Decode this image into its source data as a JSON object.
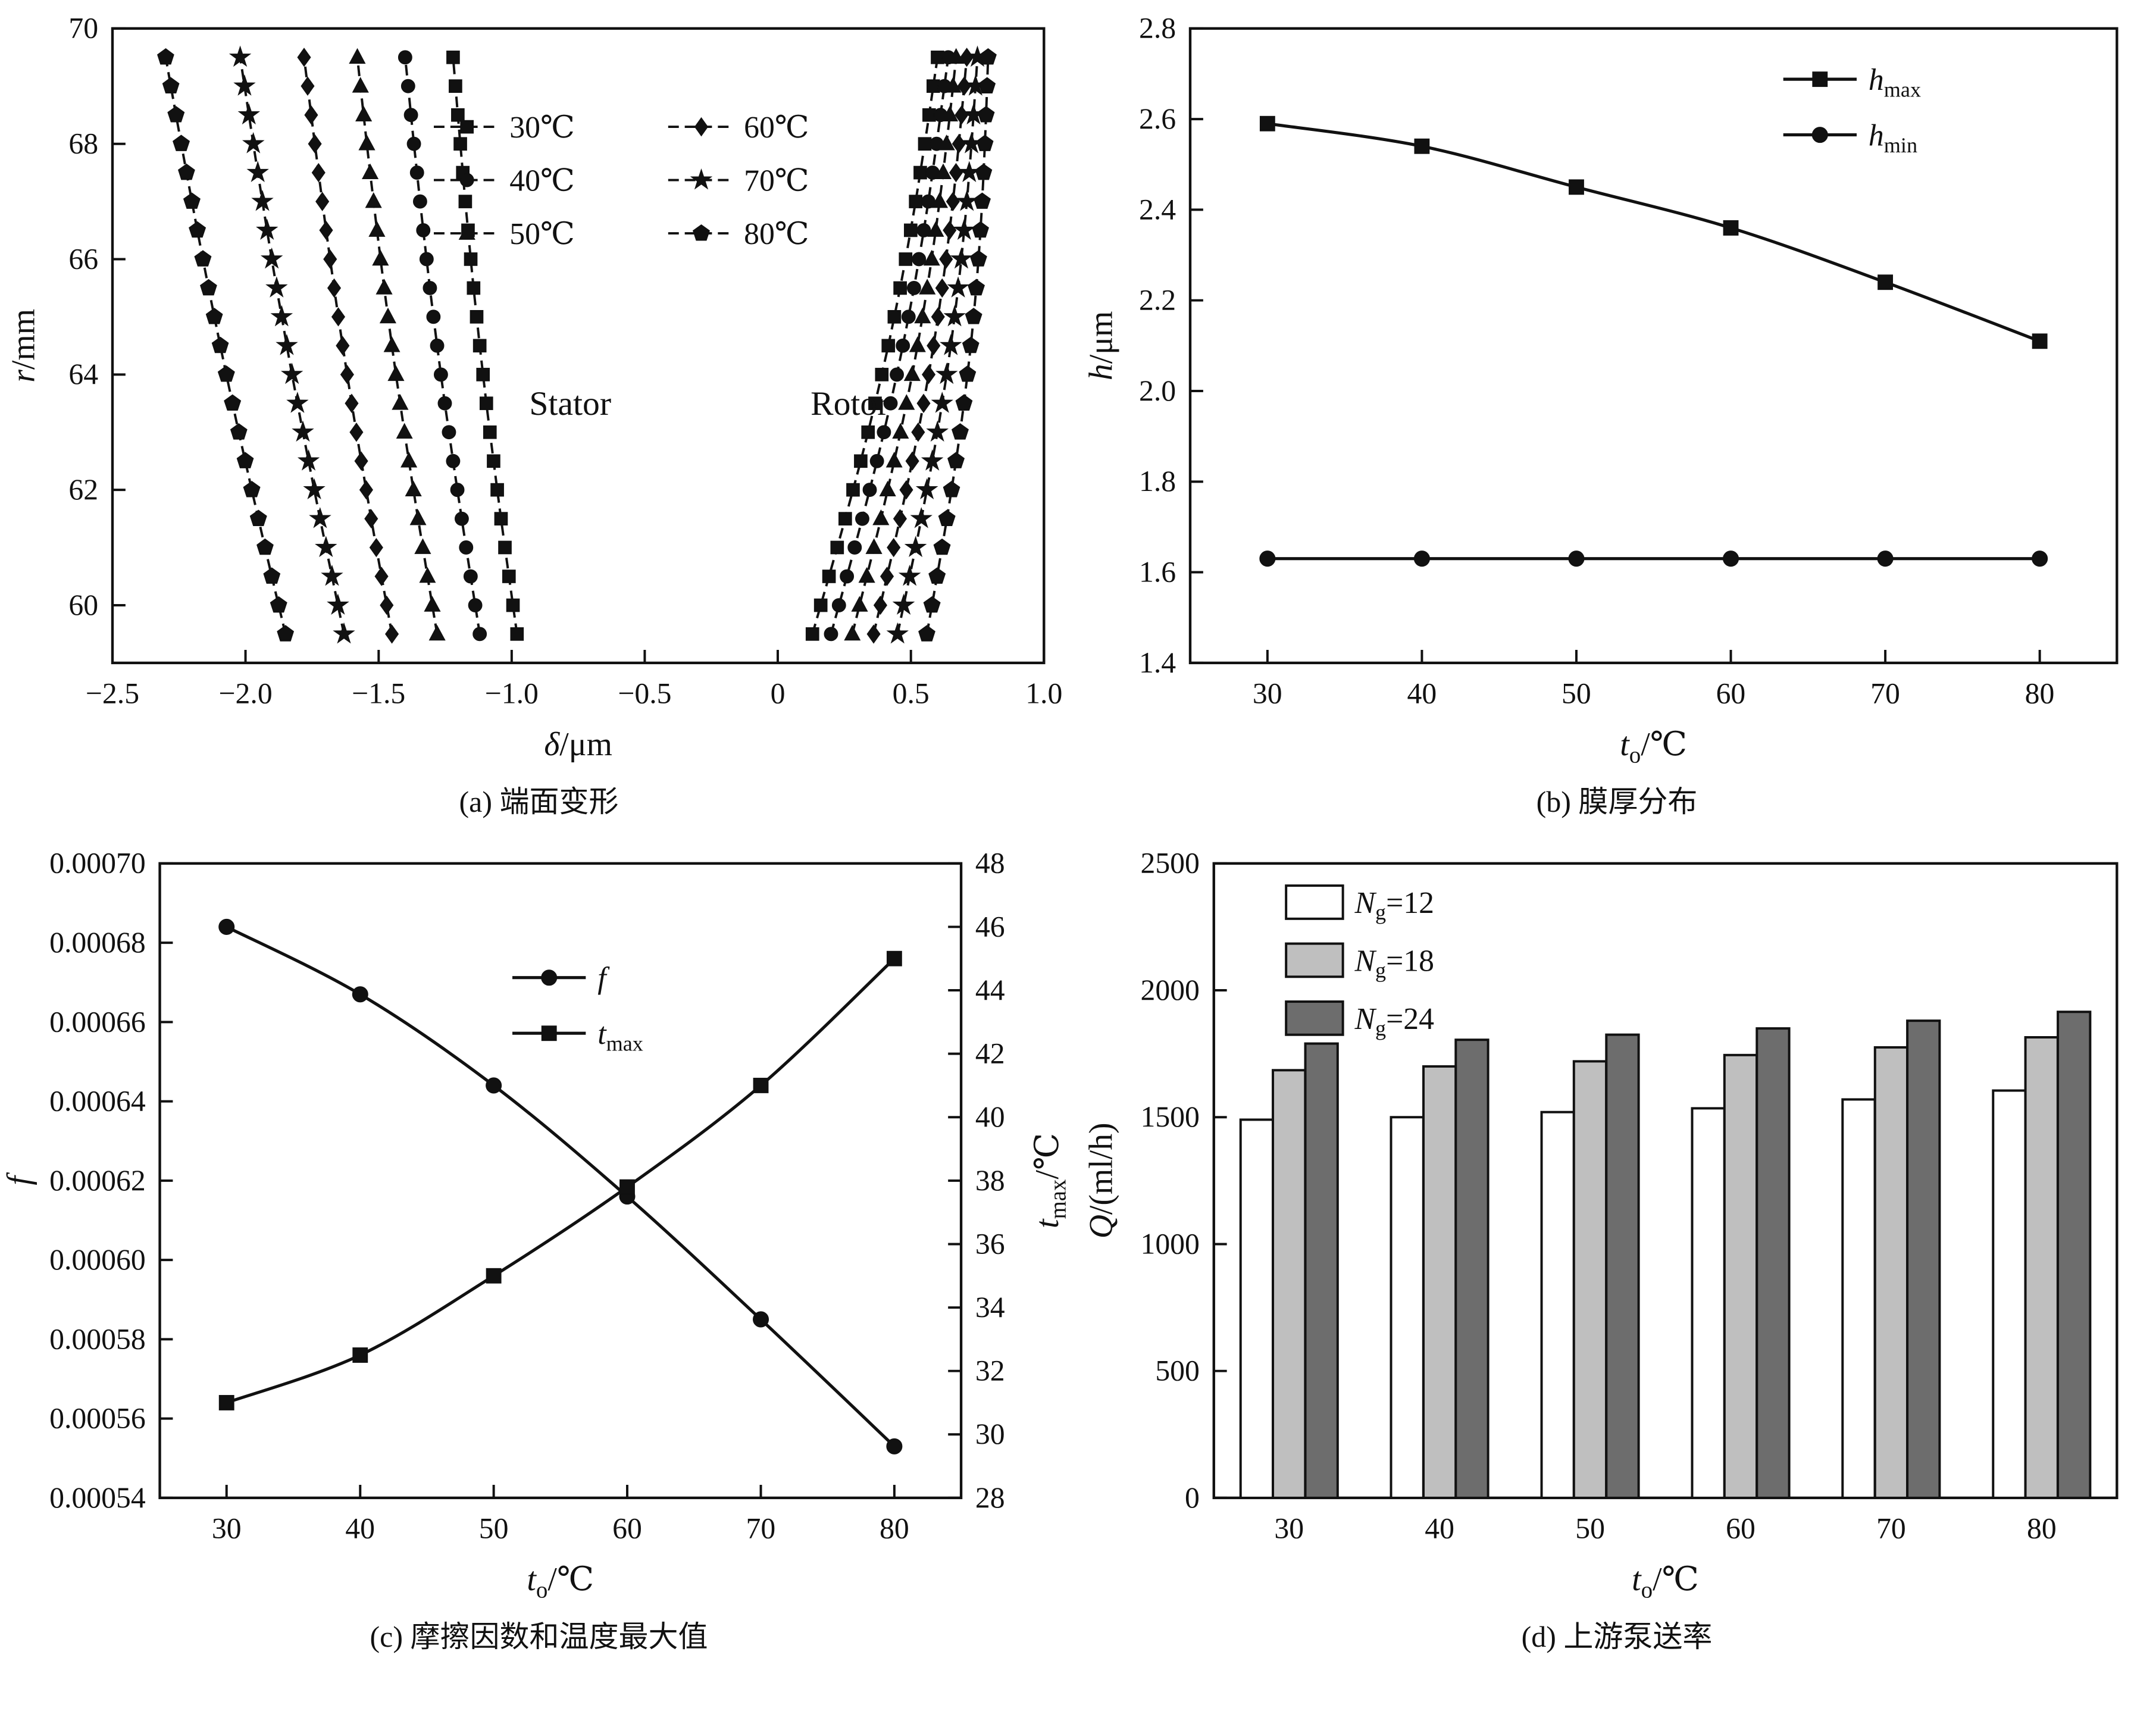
{
  "figure": {
    "captions": {
      "a": "(a) 端面变形",
      "b": "(b) 膜厚分布",
      "c": "(c) 摩擦因数和温度最大值",
      "d": "(d) 上游泵送率"
    }
  },
  "chart_data": [
    {
      "id": "a",
      "type": "line",
      "xlabel_parts": [
        {
          "t": "δ",
          "i": true
        },
        {
          "t": "/μm"
        }
      ],
      "ylabel_parts": [
        {
          "t": "r",
          "i": true
        },
        {
          "t": "/mm"
        }
      ],
      "xlim": [
        -2.5,
        1.0
      ],
      "ylim": [
        59.0,
        70.0
      ],
      "xticks": [
        {
          "v": -2.5,
          "l": "−2.5"
        },
        {
          "v": -2.0,
          "l": "−2.0"
        },
        {
          "v": -1.5,
          "l": "−1.5"
        },
        {
          "v": -1.0,
          "l": "−1.0"
        },
        {
          "v": -0.5,
          "l": "−0.5"
        },
        {
          "v": 0,
          "l": "0"
        },
        {
          "v": 0.5,
          "l": "0.5"
        },
        {
          "v": 1.0,
          "l": "1.0"
        }
      ],
      "yticks": [
        {
          "v": 60,
          "l": "60"
        },
        {
          "v": 62,
          "l": "62"
        },
        {
          "v": 64,
          "l": "64"
        },
        {
          "v": 66,
          "l": "66"
        },
        {
          "v": 68,
          "l": "68"
        },
        {
          "v": 70,
          "l": "70"
        }
      ],
      "annotations": [
        {
          "text": "Stator",
          "x": -0.78,
          "y": 63.3
        },
        {
          "text": "Rotor",
          "x": 0.27,
          "y": 63.3
        }
      ],
      "curve_gen": {
        "r_min": 59.5,
        "r_max": 69.5,
        "n": 21
      },
      "series": [
        {
          "name": "30℃",
          "marker": "square",
          "group": "stator",
          "delta_bottom": -0.98,
          "delta_top": -1.22,
          "bow": -0.02
        },
        {
          "name": "40℃",
          "marker": "circle",
          "group": "stator",
          "delta_bottom": -1.12,
          "delta_top": -1.4,
          "bow": -0.02
        },
        {
          "name": "50℃",
          "marker": "triangle",
          "group": "stator",
          "delta_bottom": -1.28,
          "delta_top": -1.58,
          "bow": -0.02
        },
        {
          "name": "60℃",
          "marker": "diamond",
          "group": "stator",
          "delta_bottom": -1.45,
          "delta_top": -1.78,
          "bow": -0.02
        },
        {
          "name": "70℃",
          "marker": "star",
          "group": "stator",
          "delta_bottom": -1.63,
          "delta_top": -2.02,
          "bow": -0.02
        },
        {
          "name": "80℃",
          "marker": "pentagon",
          "group": "stator",
          "delta_bottom": -1.85,
          "delta_top": -2.3,
          "bow": -0.02
        },
        {
          "name": "30℃",
          "marker": "square",
          "group": "rotor",
          "delta_bottom": 0.13,
          "delta_top": 0.6,
          "bow": 0.05
        },
        {
          "name": "40℃",
          "marker": "circle",
          "group": "rotor",
          "delta_bottom": 0.2,
          "delta_top": 0.64,
          "bow": 0.05
        },
        {
          "name": "50℃",
          "marker": "triangle",
          "group": "rotor",
          "delta_bottom": 0.28,
          "delta_top": 0.67,
          "bow": 0.05
        },
        {
          "name": "60℃",
          "marker": "diamond",
          "group": "rotor",
          "delta_bottom": 0.36,
          "delta_top": 0.71,
          "bow": 0.05
        },
        {
          "name": "70℃",
          "marker": "star",
          "group": "rotor",
          "delta_bottom": 0.45,
          "delta_top": 0.75,
          "bow": 0.05
        },
        {
          "name": "80℃",
          "marker": "pentagon",
          "group": "rotor",
          "delta_bottom": 0.56,
          "delta_top": 0.79,
          "bow": 0.05
        }
      ],
      "legend": {
        "cols": 2,
        "pos": [
          0.345,
          0.155
        ],
        "entries": [
          {
            "label": "30℃",
            "marker": "square"
          },
          {
            "label": "40℃",
            "marker": "circle"
          },
          {
            "label": "50℃",
            "marker": "triangle"
          },
          {
            "label": "60℃",
            "marker": "diamond"
          },
          {
            "label": "70℃",
            "marker": "star"
          },
          {
            "label": "80℃",
            "marker": "pentagon"
          }
        ]
      }
    },
    {
      "id": "b",
      "type": "line",
      "x": [
        30,
        40,
        50,
        60,
        70,
        80
      ],
      "xlim": [
        25,
        85
      ],
      "xlabel_parts": [
        {
          "t": "t",
          "i": true
        },
        {
          "t": "o",
          "sub": true
        },
        {
          "t": "/℃"
        }
      ],
      "left": {
        "lim": [
          1.4,
          2.8
        ],
        "label_parts": [
          {
            "t": "h",
            "i": true
          },
          {
            "t": "/μm"
          }
        ],
        "ticks": [
          {
            "v": 1.4,
            "l": "1.4"
          },
          {
            "v": 1.6,
            "l": "1.6"
          },
          {
            "v": 1.8,
            "l": "1.8"
          },
          {
            "v": 2.0,
            "l": "2.0"
          },
          {
            "v": 2.2,
            "l": "2.2"
          },
          {
            "v": 2.4,
            "l": "2.4"
          },
          {
            "v": 2.6,
            "l": "2.6"
          },
          {
            "v": 2.8,
            "l": "2.8"
          }
        ]
      },
      "xticks": [
        {
          "v": 30,
          "l": "30"
        },
        {
          "v": 40,
          "l": "40"
        },
        {
          "v": 50,
          "l": "50"
        },
        {
          "v": 60,
          "l": "60"
        },
        {
          "v": 70,
          "l": "70"
        },
        {
          "v": 80,
          "l": "80"
        }
      ],
      "series": [
        {
          "key": "hmax",
          "name_parts": [
            {
              "t": "h",
              "i": true
            },
            {
              "t": "max",
              "sub": true
            }
          ],
          "axis": "left",
          "marker": "square",
          "values": [
            2.59,
            2.54,
            2.45,
            2.36,
            2.24,
            2.11
          ]
        },
        {
          "key": "hmin",
          "name_parts": [
            {
              "t": "h",
              "i": true
            },
            {
              "t": "min",
              "sub": true
            }
          ],
          "axis": "left",
          "marker": "circle",
          "values": [
            1.63,
            1.63,
            1.63,
            1.63,
            1.63,
            1.63
          ]
        }
      ],
      "legend": {
        "pos": [
          0.64,
          0.08
        ]
      }
    },
    {
      "id": "c",
      "type": "line-dual",
      "x": [
        30,
        40,
        50,
        60,
        70,
        80
      ],
      "xlim": [
        25,
        85
      ],
      "xlabel_parts": [
        {
          "t": "t",
          "i": true
        },
        {
          "t": "o",
          "sub": true
        },
        {
          "t": "/℃"
        }
      ],
      "left": {
        "lim": [
          0.00054,
          0.0007
        ],
        "label_parts": [
          {
            "t": "f",
            "i": true
          }
        ],
        "ticks": [
          {
            "v": 0.00054,
            "l": "0.00054"
          },
          {
            "v": 0.00056,
            "l": "0.00056"
          },
          {
            "v": 0.00058,
            "l": "0.00058"
          },
          {
            "v": 0.0006,
            "l": "0.00060"
          },
          {
            "v": 0.00062,
            "l": "0.00062"
          },
          {
            "v": 0.00064,
            "l": "0.00064"
          },
          {
            "v": 0.00066,
            "l": "0.00066"
          },
          {
            "v": 0.00068,
            "l": "0.00068"
          },
          {
            "v": 0.0007,
            "l": "0.00070"
          }
        ]
      },
      "right": {
        "lim": [
          28,
          48
        ],
        "label_parts": [
          {
            "t": "t",
            "i": true
          },
          {
            "t": "max",
            "sub": true
          },
          {
            "t": "/℃"
          }
        ],
        "ticks": [
          {
            "v": 28,
            "l": "28"
          },
          {
            "v": 30,
            "l": "30"
          },
          {
            "v": 32,
            "l": "32"
          },
          {
            "v": 34,
            "l": "34"
          },
          {
            "v": 36,
            "l": "36"
          },
          {
            "v": 38,
            "l": "38"
          },
          {
            "v": 40,
            "l": "40"
          },
          {
            "v": 42,
            "l": "42"
          },
          {
            "v": 44,
            "l": "44"
          },
          {
            "v": 46,
            "l": "46"
          },
          {
            "v": 48,
            "l": "48"
          }
        ]
      },
      "xticks": [
        {
          "v": 30,
          "l": "30"
        },
        {
          "v": 40,
          "l": "40"
        },
        {
          "v": 50,
          "l": "50"
        },
        {
          "v": 60,
          "l": "60"
        },
        {
          "v": 70,
          "l": "70"
        },
        {
          "v": 80,
          "l": "80"
        }
      ],
      "series": [
        {
          "key": "f",
          "name_parts": [
            {
              "t": "f",
              "i": true
            }
          ],
          "axis": "left",
          "marker": "circle",
          "values": [
            0.000684,
            0.000667,
            0.000644,
            0.000616,
            0.000585,
            0.000553
          ]
        },
        {
          "key": "tmax",
          "name_parts": [
            {
              "t": "t",
              "i": true
            },
            {
              "t": "max",
              "sub": true
            }
          ],
          "axis": "right",
          "marker": "square",
          "values": [
            31.0,
            32.5,
            35.0,
            37.8,
            41.0,
            45.0
          ]
        }
      ],
      "legend": {
        "pos": [
          0.44,
          0.18
        ]
      }
    },
    {
      "id": "d",
      "type": "bar",
      "categories": [
        30,
        40,
        50,
        60,
        70,
        80
      ],
      "xlabel_parts": [
        {
          "t": "t",
          "i": true
        },
        {
          "t": "o",
          "sub": true
        },
        {
          "t": "/℃"
        }
      ],
      "ylabel_parts": [
        {
          "t": "Q",
          "i": true
        },
        {
          "t": "/(ml/h)"
        }
      ],
      "ylim": [
        0,
        2500
      ],
      "yticks": [
        {
          "v": 0,
          "l": "0"
        },
        {
          "v": 500,
          "l": "500"
        },
        {
          "v": 1000,
          "l": "1000"
        },
        {
          "v": 1500,
          "l": "1500"
        },
        {
          "v": 2000,
          "l": "2000"
        },
        {
          "v": 2500,
          "l": "2500"
        }
      ],
      "series": [
        {
          "key": "ng12",
          "name_parts": [
            {
              "t": "N",
              "i": true
            },
            {
              "t": "g",
              "sub": true
            },
            {
              "t": "=12"
            }
          ],
          "fill": "#ffffff",
          "values": [
            1490,
            1500,
            1520,
            1535,
            1570,
            1605
          ]
        },
        {
          "key": "ng18",
          "name_parts": [
            {
              "t": "N",
              "i": true
            },
            {
              "t": "g",
              "sub": true
            },
            {
              "t": "=18"
            }
          ],
          "fill": "#bfbfbf",
          "values": [
            1685,
            1700,
            1720,
            1745,
            1775,
            1815
          ]
        },
        {
          "key": "ng24",
          "name_parts": [
            {
              "t": "N",
              "i": true
            },
            {
              "t": "g",
              "sub": true
            },
            {
              "t": "=24"
            }
          ],
          "fill": "#6d6d6d",
          "values": [
            1790,
            1805,
            1825,
            1850,
            1880,
            1915
          ]
        }
      ],
      "legend": {
        "pos": [
          0.08,
          0.035
        ]
      }
    }
  ]
}
